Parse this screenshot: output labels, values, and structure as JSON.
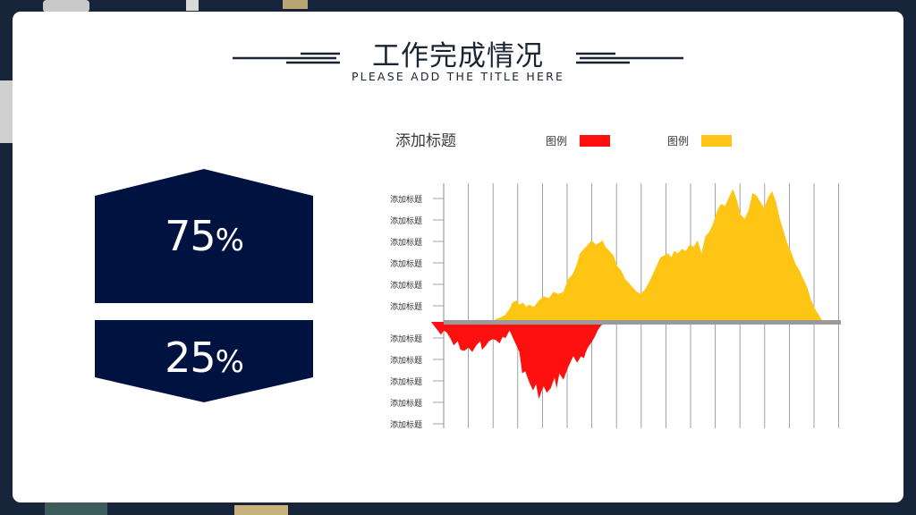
{
  "header": {
    "title": "工作完成情况",
    "subtitle": "PLEASE ADD THE TITLE HERE"
  },
  "stats": [
    {
      "value": "75",
      "unit": "%"
    },
    {
      "value": "25",
      "unit": "%"
    }
  ],
  "colors": {
    "navy": "#001240",
    "red": "#ff1010",
    "yellow": "#ffc515",
    "baseline": "#9a9a9a",
    "gridline": "#8a8a8a"
  },
  "chart_data": {
    "type": "area",
    "title": "添加标题",
    "legend": [
      {
        "label": "图例",
        "color": "#ff1010"
      },
      {
        "label": "图例",
        "color": "#ffc515"
      }
    ],
    "legend_position": "top-right",
    "y_tick_labels_positive": [
      "添加标题",
      "添加标题",
      "添加标题",
      "添加标题",
      "添加标题",
      "添加标题"
    ],
    "y_tick_labels_negative": [
      "添加标题",
      "添加标题",
      "添加标题",
      "添加标题",
      "添加标题"
    ],
    "ylim": [
      -5,
      6
    ],
    "grid": "vertical",
    "series": [
      {
        "color": "#ff1010",
        "x": [
          0,
          0.5,
          1.0,
          1.3,
          1.6,
          2.0,
          2.3,
          2.7,
          3.0,
          3.4,
          3.8,
          4.2,
          4.6,
          5.0,
          5.2,
          5.6,
          5.9,
          6.3,
          6.6,
          7.0,
          7.3,
          7.6,
          8.0,
          8.5,
          9.0,
          9.3,
          9.6,
          10.0,
          10.4,
          10.7,
          11.0,
          11.3,
          11.5,
          11.8,
          12.2,
          12.6,
          12.8,
          13.1,
          13.5,
          14.0,
          14.5,
          14.9,
          15.3,
          15.6,
          15.8,
          16.0,
          16.3,
          16.7,
          17.0,
          17.3,
          17.8
        ],
        "y": [
          0,
          -0.3,
          -0.6,
          -0.4,
          -0.5,
          -0.8,
          -1.1,
          -0.9,
          -1.3,
          -1.35,
          -1.2,
          -1.4,
          -1.1,
          -0.9,
          -1.3,
          -1.1,
          -0.9,
          -0.8,
          -0.85,
          -1.0,
          -0.7,
          -0.75,
          -0.4,
          -0.9,
          -1.4,
          -2.4,
          -2.3,
          -2.8,
          -3.2,
          -2.9,
          -3.6,
          -3.2,
          -3.0,
          -3.3,
          -3.1,
          -2.6,
          -3.1,
          -2.4,
          -2.7,
          -2.1,
          -1.6,
          -1.9,
          -1.6,
          -1.7,
          -1.4,
          -1.2,
          -1.0,
          -0.7,
          -0.4,
          -0.2,
          0
        ]
      },
      {
        "color": "#ffc515",
        "x": [
          0,
          1,
          2,
          3,
          4,
          5,
          6,
          6.5,
          7.0,
          7.5,
          8.0,
          8.3,
          8.7,
          9.0,
          9.4,
          9.7,
          10.0,
          10.5,
          11.0,
          11.5,
          12.0,
          12.5,
          13.0,
          13.5,
          14.0,
          14.4,
          14.8,
          15.2,
          15.6,
          16.0,
          16.4,
          16.8,
          17.2,
          17.5,
          17.8,
          18.2,
          18.6,
          19.0,
          19.4,
          19.8,
          20.2,
          20.6,
          21.0,
          21.4,
          21.8,
          22.2,
          22.6,
          23.0,
          23.4,
          23.8,
          24.2,
          24.5,
          24.8,
          25.2,
          25.6,
          26.0,
          26.4,
          26.8,
          27.2,
          27.6,
          28.0,
          28.4,
          28.8,
          29.2,
          29.6,
          30.0,
          30.4,
          30.8,
          31.2,
          31.6,
          32.0,
          32.4,
          32.8,
          33.2,
          33.6,
          34.0,
          34.4,
          34.8,
          35.2,
          35.6,
          36.0,
          36.4,
          36.8,
          37.2,
          37.6,
          38.0,
          38.4,
          38.8,
          39.2,
          39.6,
          40.0
        ],
        "y": [
          0,
          0,
          0,
          0,
          0,
          0,
          0,
          0.1,
          0.2,
          0.3,
          0.6,
          0.9,
          1.0,
          0.8,
          0.9,
          0.7,
          0.8,
          0.7,
          1.0,
          1.2,
          1.1,
          1.4,
          1.3,
          1.4,
          2.0,
          2.2,
          2.6,
          3.2,
          3.4,
          3.6,
          3.8,
          3.6,
          3.7,
          3.8,
          3.5,
          3.3,
          3.1,
          2.6,
          2.4,
          2.0,
          1.8,
          1.6,
          1.4,
          1.3,
          1.5,
          1.8,
          2.2,
          2.6,
          3.0,
          3.1,
          3.2,
          3.0,
          3.3,
          3.2,
          3.4,
          3.3,
          3.6,
          3.5,
          3.8,
          3.2,
          4.0,
          4.2,
          4.6,
          5.2,
          5.5,
          5.4,
          5.8,
          6.2,
          5.7,
          5.0,
          4.8,
          5.2,
          6.0,
          5.9,
          5.6,
          5.3,
          5.8,
          6.1,
          5.6,
          4.8,
          4.2,
          3.6,
          3.2,
          2.7,
          2.4,
          2.0,
          1.6,
          1.0,
          0.6,
          0.3,
          0
        ]
      }
    ]
  }
}
